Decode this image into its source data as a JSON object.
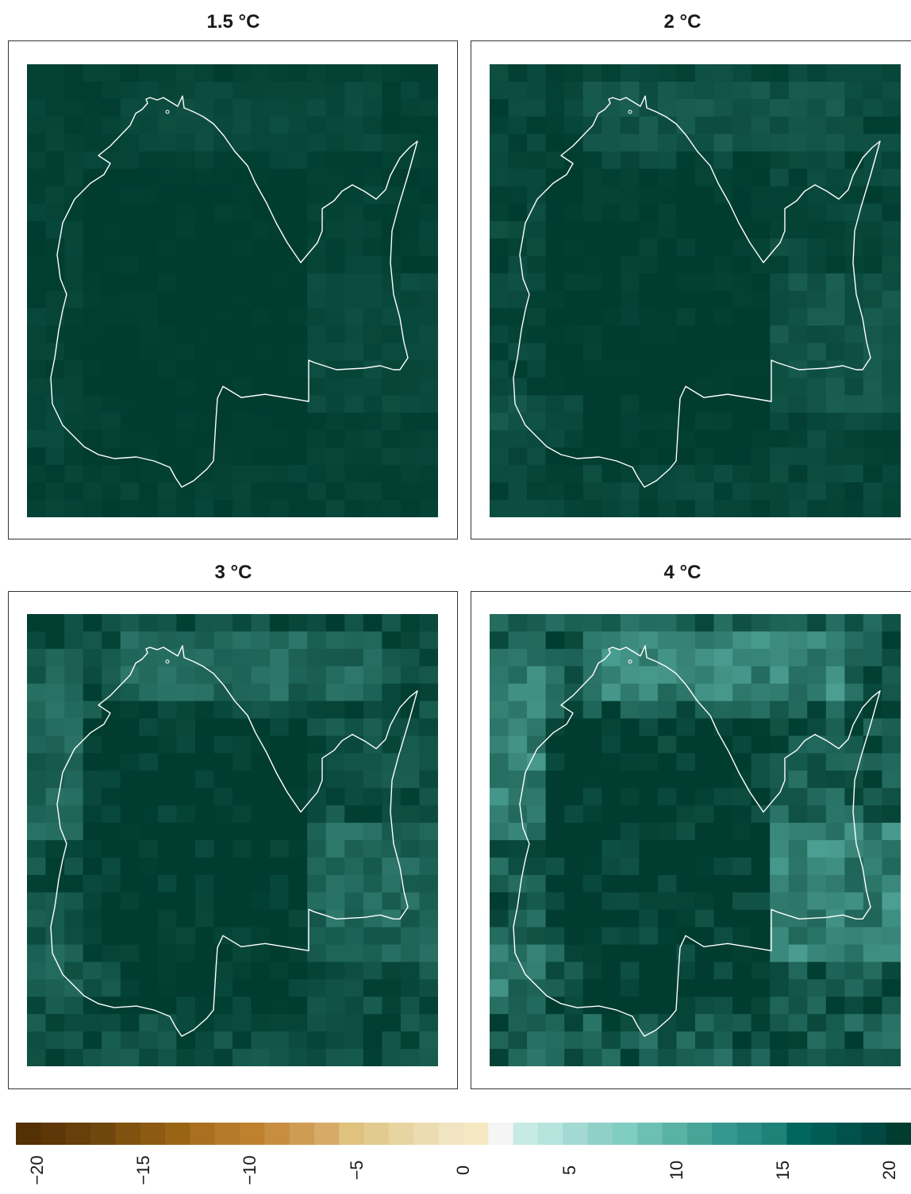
{
  "panels": [
    {
      "title": "1.5 °C",
      "intensity": 0.12
    },
    {
      "title": "2 °C",
      "intensity": 0.22
    },
    {
      "title": "3 °C",
      "intensity": 0.38
    },
    {
      "title": "4 °C",
      "intensity": 0.62
    }
  ],
  "colorbar": {
    "min": -21,
    "max": 21,
    "ticks": [
      "−20",
      "−15",
      "−10",
      "−5",
      "0",
      "5",
      "10",
      "15",
      "20"
    ],
    "tick_values": [
      -20,
      -15,
      -10,
      -5,
      0,
      5,
      10,
      15,
      20
    ],
    "colors": [
      "#543005",
      "#5d3708",
      "#663f0b",
      "#6f470e",
      "#7f5210",
      "#8c5a12",
      "#996515",
      "#a87020",
      "#b57b2a",
      "#bf812d",
      "#c78e40",
      "#cf9c53",
      "#d7ab67",
      "#dfc27d",
      "#e3cb8f",
      "#e8d4a1",
      "#ecdcb2",
      "#f0e4c1",
      "#f6e8c3",
      "#f5f5f5",
      "#c7eae5",
      "#b7e3dd",
      "#a2d9d2",
      "#8fd0c7",
      "#80cdc1",
      "#6dbfb3",
      "#5ab2a5",
      "#46a596",
      "#35978f",
      "#2a8c84",
      "#1f8279",
      "#01665e",
      "#015c55",
      "#01524c",
      "#014843",
      "#003c30"
    ]
  }
}
